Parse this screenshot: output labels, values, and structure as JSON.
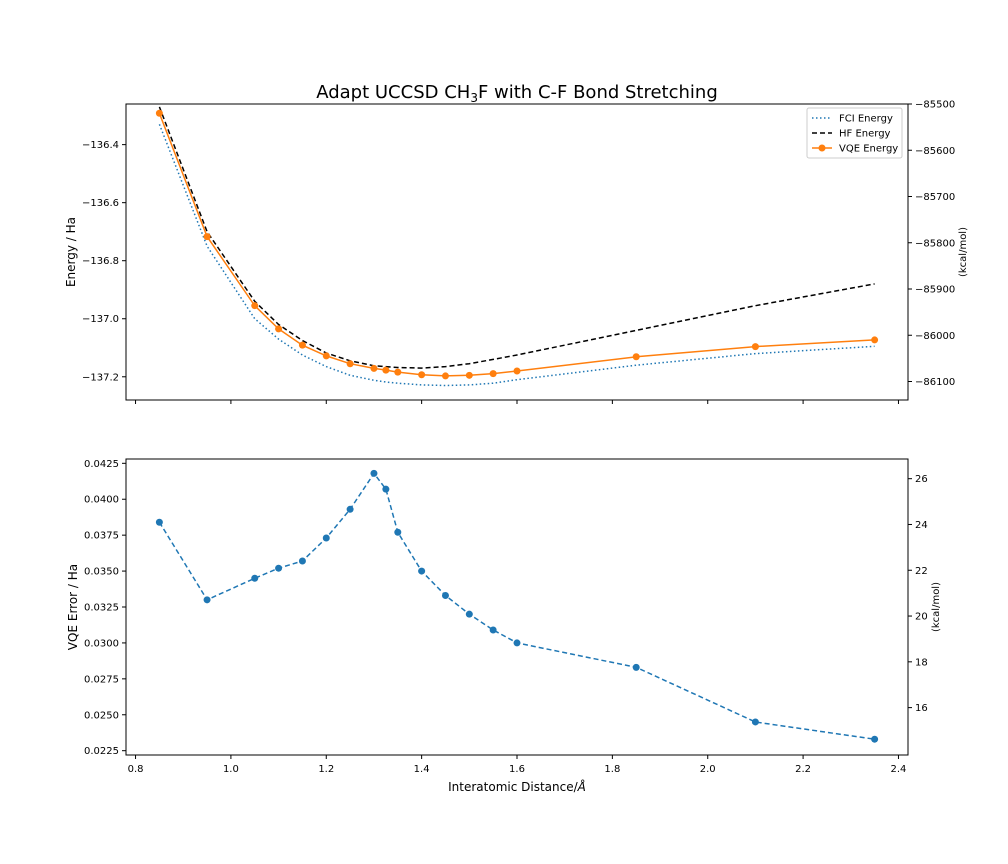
{
  "chart_data": [
    {
      "type": "line",
      "title": "Adapt UCCSD CH",
      "title_sub": "3",
      "title_end": "F with C-F Bond Stretching",
      "xlabel": "",
      "ylabel": "Energy / Ha",
      "y2label": "(kcal/mol)",
      "xlim": [
        0.78,
        2.42
      ],
      "ylim": [
        -137.28,
        -136.26
      ],
      "y2lim": [
        -86140,
        -85500
      ],
      "xticks": [
        0.8,
        1.0,
        1.2,
        1.4,
        1.6,
        1.8,
        2.0,
        2.2,
        2.4
      ],
      "xtick_labels_shown": false,
      "yticks": [
        -136.4,
        -136.6,
        -136.8,
        -137.0,
        -137.2
      ],
      "ytick_labels": [
        "−136.4",
        "−136.6",
        "−136.8",
        "−137.0",
        "−137.2"
      ],
      "y2ticks": [
        -85500,
        -85600,
        -85700,
        -85800,
        -85900,
        -86000,
        -86100
      ],
      "y2tick_labels": [
        "−85500",
        "−85600",
        "−85700",
        "−85800",
        "−85900",
        "−86000",
        "−86100"
      ],
      "legend_position": "top-right",
      "grid": false,
      "series": [
        {
          "name": "FCI Energy",
          "style": "dotted",
          "color": "#1f77b4",
          "x": [
            0.85,
            0.95,
            1.05,
            1.1,
            1.15,
            1.2,
            1.25,
            1.3,
            1.325,
            1.35,
            1.4,
            1.45,
            1.5,
            1.55,
            1.6,
            1.85,
            2.1,
            2.35
          ],
          "y": [
            -136.33,
            -136.75,
            -137.0,
            -137.07,
            -137.125,
            -137.165,
            -137.195,
            -137.212,
            -137.218,
            -137.222,
            -137.228,
            -137.23,
            -137.228,
            -137.222,
            -137.21,
            -137.16,
            -137.12,
            -137.095
          ]
        },
        {
          "name": "HF Energy",
          "style": "dashed",
          "color": "#000000",
          "x": [
            0.85,
            0.95,
            1.05,
            1.1,
            1.15,
            1.2,
            1.25,
            1.3,
            1.35,
            1.4,
            1.45,
            1.5,
            1.55,
            1.6,
            1.85,
            2.1,
            2.35
          ],
          "y": [
            -136.27,
            -136.7,
            -136.94,
            -137.02,
            -137.075,
            -137.118,
            -137.145,
            -137.162,
            -137.168,
            -137.17,
            -137.165,
            -137.155,
            -137.14,
            -137.125,
            -137.04,
            -136.955,
            -136.88
          ]
        },
        {
          "name": "VQE Energy",
          "style": "solid-marker",
          "color": "#ff7f0e",
          "x": [
            0.85,
            0.95,
            1.05,
            1.1,
            1.15,
            1.2,
            1.25,
            1.3,
            1.325,
            1.35,
            1.4,
            1.45,
            1.5,
            1.55,
            1.6,
            1.85,
            2.1,
            2.35
          ],
          "y": [
            -136.292,
            -136.717,
            -136.955,
            -137.035,
            -137.091,
            -137.128,
            -137.155,
            -137.171,
            -137.177,
            -137.184,
            -137.193,
            -137.197,
            -137.195,
            -137.189,
            -137.18,
            -137.131,
            -137.096,
            -137.073
          ]
        }
      ]
    },
    {
      "type": "line",
      "title": "",
      "xlabel": "Interatomic Distance/",
      "xlabel_unit": "Å",
      "ylabel": "VQE Error / Ha",
      "y2label": "(kcal/mol)",
      "xlim": [
        0.78,
        2.42
      ],
      "ylim": [
        0.0222,
        0.0428
      ],
      "y2lim": [
        13.93,
        26.86
      ],
      "xticks": [
        0.8,
        1.0,
        1.2,
        1.4,
        1.6,
        1.8,
        2.0,
        2.2,
        2.4
      ],
      "xtick_labels": [
        "0.8",
        "1.0",
        "1.2",
        "1.4",
        "1.6",
        "1.8",
        "2.0",
        "2.2",
        "2.4"
      ],
      "yticks": [
        0.0225,
        0.025,
        0.0275,
        0.03,
        0.0325,
        0.035,
        0.0375,
        0.04,
        0.0425
      ],
      "ytick_labels": [
        "0.0225",
        "0.0250",
        "0.0275",
        "0.0300",
        "0.0325",
        "0.0350",
        "0.0375",
        "0.0400",
        "0.0425"
      ],
      "y2ticks": [
        16,
        18,
        20,
        22,
        24,
        26
      ],
      "y2tick_labels": [
        "16",
        "18",
        "20",
        "22",
        "24",
        "26"
      ],
      "grid": false,
      "series": [
        {
          "style": "dashed-marker",
          "color": "#1f77b4",
          "x": [
            0.85,
            0.95,
            1.05,
            1.1,
            1.15,
            1.2,
            1.25,
            1.3,
            1.325,
            1.35,
            1.4,
            1.45,
            1.5,
            1.55,
            1.6,
            1.85,
            2.1,
            2.35
          ],
          "y": [
            0.0384,
            0.033,
            0.0345,
            0.0352,
            0.0357,
            0.0373,
            0.0393,
            0.0418,
            0.0407,
            0.0377,
            0.035,
            0.0333,
            0.032,
            0.0309,
            0.03,
            0.0283,
            0.0245,
            0.0233
          ]
        }
      ]
    }
  ]
}
